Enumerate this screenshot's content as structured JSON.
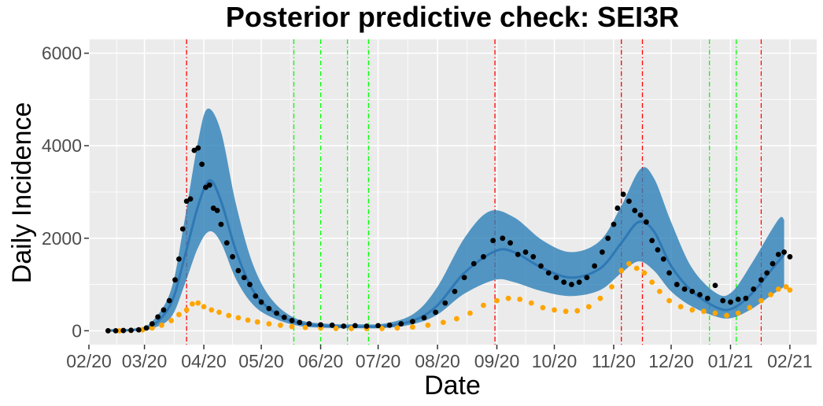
{
  "chart_data": {
    "type": "line",
    "title": "Posterior predictive check: SEI3R",
    "xlabel": "Date",
    "ylabel": "Daily Incidence",
    "x_range": [
      "2020-02-01",
      "2021-02-15"
    ],
    "ylim": [
      -300,
      6300
    ],
    "x_ticks": [
      {
        "date": "2020-02-01",
        "label": "02/20"
      },
      {
        "date": "2020-03-01",
        "label": "03/20"
      },
      {
        "date": "2020-04-01",
        "label": "04/20"
      },
      {
        "date": "2020-05-01",
        "label": "05/20"
      },
      {
        "date": "2020-06-01",
        "label": "06/20"
      },
      {
        "date": "2020-07-01",
        "label": "07/20"
      },
      {
        "date": "2020-08-01",
        "label": "08/20"
      },
      {
        "date": "2020-09-01",
        "label": "09/20"
      },
      {
        "date": "2020-10-01",
        "label": "10/20"
      },
      {
        "date": "2020-11-01",
        "label": "11/20"
      },
      {
        "date": "2020-12-01",
        "label": "12/20"
      },
      {
        "date": "2021-01-01",
        "label": "01/21"
      },
      {
        "date": "2021-02-01",
        "label": "02/21"
      }
    ],
    "y_ticks": [
      {
        "value": 0,
        "label": "0"
      },
      {
        "value": 2000,
        "label": "2000"
      },
      {
        "value": 4000,
        "label": "4000"
      },
      {
        "value": 6000,
        "label": "6000"
      }
    ],
    "grid": true,
    "background": "#ebebeb",
    "colors": {
      "band": "#2c7fb8",
      "median": "#2f78b5",
      "observed": "#000000",
      "secondary": "#ffa500",
      "red_lines": "#ff0000",
      "green_lines": "#00ff00"
    },
    "vertical_lines": {
      "red": [
        "2020-03-23",
        "2020-08-31",
        "2020-11-05",
        "2020-11-16",
        "2021-01-17"
      ],
      "green": [
        "2020-05-18",
        "2020-06-01",
        "2020-06-15",
        "2020-06-26",
        "2020-12-21",
        "2021-01-04"
      ]
    },
    "series": [
      {
        "role": "posterior-median",
        "points": [
          [
            "2020-02-10",
            5
          ],
          [
            "2020-02-25",
            20
          ],
          [
            "2020-03-05",
            100
          ],
          [
            "2020-03-15",
            600
          ],
          [
            "2020-03-22",
            1600
          ],
          [
            "2020-03-29",
            2700
          ],
          [
            "2020-04-04",
            3250
          ],
          [
            "2020-04-10",
            2800
          ],
          [
            "2020-04-18",
            1700
          ],
          [
            "2020-04-27",
            850
          ],
          [
            "2020-05-07",
            420
          ],
          [
            "2020-05-20",
            170
          ],
          [
            "2020-06-05",
            100
          ],
          [
            "2020-06-20",
            90
          ],
          [
            "2020-07-05",
            100
          ],
          [
            "2020-07-20",
            230
          ],
          [
            "2020-08-01",
            550
          ],
          [
            "2020-08-15",
            1250
          ],
          [
            "2020-08-31",
            1720
          ],
          [
            "2020-09-10",
            1700
          ],
          [
            "2020-09-25",
            1350
          ],
          [
            "2020-10-10",
            1150
          ],
          [
            "2020-10-25",
            1350
          ],
          [
            "2020-11-05",
            1900
          ],
          [
            "2020-11-14",
            2350
          ],
          [
            "2020-11-22",
            2150
          ],
          [
            "2020-12-01",
            1400
          ],
          [
            "2020-12-12",
            850
          ],
          [
            "2020-12-25",
            500
          ],
          [
            "2021-01-02",
            480
          ],
          [
            "2021-01-12",
            800
          ],
          [
            "2021-01-22",
            1300
          ],
          [
            "2021-01-29",
            1650
          ]
        ]
      },
      {
        "role": "credible-band-upper",
        "points": [
          [
            "2020-02-10",
            10
          ],
          [
            "2020-02-25",
            50
          ],
          [
            "2020-03-05",
            200
          ],
          [
            "2020-03-15",
            900
          ],
          [
            "2020-03-22",
            2400
          ],
          [
            "2020-03-29",
            4100
          ],
          [
            "2020-04-03",
            4800
          ],
          [
            "2020-04-10",
            4300
          ],
          [
            "2020-04-18",
            2700
          ],
          [
            "2020-04-27",
            1400
          ],
          [
            "2020-05-07",
            650
          ],
          [
            "2020-05-20",
            250
          ],
          [
            "2020-06-05",
            150
          ],
          [
            "2020-06-20",
            140
          ],
          [
            "2020-07-05",
            160
          ],
          [
            "2020-07-20",
            380
          ],
          [
            "2020-08-01",
            950
          ],
          [
            "2020-08-15",
            2000
          ],
          [
            "2020-08-28",
            2580
          ],
          [
            "2020-09-10",
            2450
          ],
          [
            "2020-09-25",
            1950
          ],
          [
            "2020-10-10",
            1700
          ],
          [
            "2020-10-25",
            1950
          ],
          [
            "2020-11-05",
            2700
          ],
          [
            "2020-11-15",
            3500
          ],
          [
            "2020-11-22",
            3300
          ],
          [
            "2020-12-01",
            2350
          ],
          [
            "2020-12-12",
            1350
          ],
          [
            "2020-12-25",
            800
          ],
          [
            "2021-01-02",
            850
          ],
          [
            "2021-01-12",
            1450
          ],
          [
            "2021-01-22",
            2150
          ],
          [
            "2021-01-27",
            2450
          ],
          [
            "2021-01-29",
            2400
          ]
        ]
      },
      {
        "role": "credible-band-lower",
        "points": [
          [
            "2020-02-10",
            0
          ],
          [
            "2020-02-25",
            5
          ],
          [
            "2020-03-05",
            50
          ],
          [
            "2020-03-15",
            300
          ],
          [
            "2020-03-22",
            1000
          ],
          [
            "2020-03-29",
            1800
          ],
          [
            "2020-04-04",
            2150
          ],
          [
            "2020-04-10",
            1900
          ],
          [
            "2020-04-18",
            1100
          ],
          [
            "2020-04-27",
            550
          ],
          [
            "2020-05-07",
            280
          ],
          [
            "2020-05-20",
            110
          ],
          [
            "2020-06-05",
            60
          ],
          [
            "2020-06-20",
            55
          ],
          [
            "2020-07-05",
            60
          ],
          [
            "2020-07-20",
            150
          ],
          [
            "2020-08-01",
            350
          ],
          [
            "2020-08-15",
            800
          ],
          [
            "2020-08-31",
            1100
          ],
          [
            "2020-09-10",
            1050
          ],
          [
            "2020-09-25",
            850
          ],
          [
            "2020-10-10",
            750
          ],
          [
            "2020-10-25",
            880
          ],
          [
            "2020-11-05",
            1250
          ],
          [
            "2020-11-14",
            1500
          ],
          [
            "2020-11-22",
            1300
          ],
          [
            "2020-12-01",
            850
          ],
          [
            "2020-12-12",
            520
          ],
          [
            "2020-12-25",
            300
          ],
          [
            "2021-01-02",
            280
          ],
          [
            "2021-01-12",
            470
          ],
          [
            "2021-01-22",
            760
          ],
          [
            "2021-01-29",
            950
          ]
        ]
      },
      {
        "role": "observed-black",
        "points": [
          [
            "2020-02-11",
            0
          ],
          [
            "2020-02-15",
            0
          ],
          [
            "2020-02-19",
            5
          ],
          [
            "2020-02-23",
            10
          ],
          [
            "2020-02-27",
            20
          ],
          [
            "2020-03-02",
            60
          ],
          [
            "2020-03-05",
            150
          ],
          [
            "2020-03-08",
            300
          ],
          [
            "2020-03-11",
            450
          ],
          [
            "2020-03-14",
            650
          ],
          [
            "2020-03-17",
            1100
          ],
          [
            "2020-03-19",
            1550
          ],
          [
            "2020-03-21",
            2200
          ],
          [
            "2020-03-23",
            2800
          ],
          [
            "2020-03-25",
            2850
          ],
          [
            "2020-03-27",
            3900
          ],
          [
            "2020-03-29",
            3950
          ],
          [
            "2020-03-31",
            3600
          ],
          [
            "2020-04-02",
            3100
          ],
          [
            "2020-04-04",
            3150
          ],
          [
            "2020-04-06",
            2650
          ],
          [
            "2020-04-08",
            2600
          ],
          [
            "2020-04-10",
            2300
          ],
          [
            "2020-04-13",
            1900
          ],
          [
            "2020-04-16",
            1600
          ],
          [
            "2020-04-19",
            1300
          ],
          [
            "2020-04-22",
            1150
          ],
          [
            "2020-04-25",
            1000
          ],
          [
            "2020-04-28",
            750
          ],
          [
            "2020-05-01",
            620
          ],
          [
            "2020-05-05",
            480
          ],
          [
            "2020-05-09",
            380
          ],
          [
            "2020-05-13",
            290
          ],
          [
            "2020-05-17",
            220
          ],
          [
            "2020-05-21",
            180
          ],
          [
            "2020-05-26",
            150
          ],
          [
            "2020-06-01",
            130
          ],
          [
            "2020-06-07",
            120
          ],
          [
            "2020-06-13",
            100
          ],
          [
            "2020-06-19",
            110
          ],
          [
            "2020-06-25",
            100
          ],
          [
            "2020-07-01",
            110
          ],
          [
            "2020-07-07",
            120
          ],
          [
            "2020-07-13",
            150
          ],
          [
            "2020-07-19",
            200
          ],
          [
            "2020-07-25",
            280
          ],
          [
            "2020-07-31",
            400
          ],
          [
            "2020-08-05",
            600
          ],
          [
            "2020-08-10",
            850
          ],
          [
            "2020-08-15",
            1150
          ],
          [
            "2020-08-20",
            1450
          ],
          [
            "2020-08-25",
            1600
          ],
          [
            "2020-08-30",
            1950
          ],
          [
            "2020-09-04",
            2000
          ],
          [
            "2020-09-08",
            1900
          ],
          [
            "2020-09-12",
            1650
          ],
          [
            "2020-09-16",
            1700
          ],
          [
            "2020-09-20",
            1600
          ],
          [
            "2020-09-24",
            1400
          ],
          [
            "2020-09-28",
            1250
          ],
          [
            "2020-10-02",
            1150
          ],
          [
            "2020-10-06",
            1050
          ],
          [
            "2020-10-10",
            1000
          ],
          [
            "2020-10-14",
            1050
          ],
          [
            "2020-10-18",
            1150
          ],
          [
            "2020-10-22",
            1400
          ],
          [
            "2020-10-26",
            1700
          ],
          [
            "2020-10-29",
            2000
          ],
          [
            "2020-11-01",
            2300
          ],
          [
            "2020-11-03",
            2650
          ],
          [
            "2020-11-06",
            2950
          ],
          [
            "2020-11-09",
            2800
          ],
          [
            "2020-11-12",
            2600
          ],
          [
            "2020-11-15",
            2500
          ],
          [
            "2020-11-18",
            2350
          ],
          [
            "2020-11-21",
            1950
          ],
          [
            "2020-11-24",
            1750
          ],
          [
            "2020-11-27",
            1550
          ],
          [
            "2020-11-30",
            1250
          ],
          [
            "2020-12-04",
            1000
          ],
          [
            "2020-12-08",
            900
          ],
          [
            "2020-12-12",
            850
          ],
          [
            "2020-12-16",
            780
          ],
          [
            "2020-12-20",
            700
          ],
          [
            "2020-12-24",
            980
          ],
          [
            "2020-12-28",
            650
          ],
          [
            "2021-01-01",
            620
          ],
          [
            "2021-01-05",
            680
          ],
          [
            "2021-01-09",
            700
          ],
          [
            "2021-01-13",
            900
          ],
          [
            "2021-01-17",
            1100
          ],
          [
            "2021-01-20",
            1250
          ],
          [
            "2021-01-23",
            1450
          ],
          [
            "2021-01-26",
            1650
          ],
          [
            "2021-01-29",
            1700
          ],
          [
            "2021-02-01",
            1600
          ]
        ]
      },
      {
        "role": "observed-orange",
        "points": [
          [
            "2020-02-11",
            0
          ],
          [
            "2020-02-17",
            0
          ],
          [
            "2020-02-23",
            5
          ],
          [
            "2020-02-29",
            20
          ],
          [
            "2020-03-05",
            60
          ],
          [
            "2020-03-10",
            120
          ],
          [
            "2020-03-15",
            220
          ],
          [
            "2020-03-19",
            350
          ],
          [
            "2020-03-23",
            450
          ],
          [
            "2020-03-26",
            580
          ],
          [
            "2020-03-29",
            600
          ],
          [
            "2020-04-01",
            520
          ],
          [
            "2020-04-05",
            450
          ],
          [
            "2020-04-09",
            400
          ],
          [
            "2020-04-14",
            330
          ],
          [
            "2020-04-19",
            280
          ],
          [
            "2020-04-24",
            230
          ],
          [
            "2020-04-29",
            190
          ],
          [
            "2020-05-05",
            150
          ],
          [
            "2020-05-11",
            120
          ],
          [
            "2020-05-17",
            90
          ],
          [
            "2020-05-24",
            70
          ],
          [
            "2020-06-01",
            60
          ],
          [
            "2020-06-09",
            50
          ],
          [
            "2020-06-17",
            50
          ],
          [
            "2020-06-25",
            50
          ],
          [
            "2020-07-03",
            50
          ],
          [
            "2020-07-11",
            60
          ],
          [
            "2020-07-19",
            80
          ],
          [
            "2020-07-27",
            120
          ],
          [
            "2020-08-04",
            180
          ],
          [
            "2020-08-11",
            260
          ],
          [
            "2020-08-18",
            380
          ],
          [
            "2020-08-25",
            550
          ],
          [
            "2020-09-01",
            650
          ],
          [
            "2020-09-07",
            700
          ],
          [
            "2020-09-13",
            680
          ],
          [
            "2020-09-19",
            600
          ],
          [
            "2020-09-25",
            500
          ],
          [
            "2020-10-01",
            450
          ],
          [
            "2020-10-07",
            420
          ],
          [
            "2020-10-13",
            430
          ],
          [
            "2020-10-19",
            520
          ],
          [
            "2020-10-25",
            700
          ],
          [
            "2020-10-31",
            950
          ],
          [
            "2020-11-05",
            1300
          ],
          [
            "2020-11-09",
            1450
          ],
          [
            "2020-11-13",
            1350
          ],
          [
            "2020-11-17",
            1250
          ],
          [
            "2020-11-21",
            1050
          ],
          [
            "2020-11-25",
            850
          ],
          [
            "2020-11-30",
            650
          ],
          [
            "2020-12-06",
            520
          ],
          [
            "2020-12-12",
            450
          ],
          [
            "2020-12-18",
            420
          ],
          [
            "2020-12-24",
            380
          ],
          [
            "2020-12-30",
            330
          ],
          [
            "2021-01-05",
            380
          ],
          [
            "2021-01-11",
            500
          ],
          [
            "2021-01-17",
            650
          ],
          [
            "2021-01-22",
            780
          ],
          [
            "2021-01-26",
            900
          ],
          [
            "2021-01-30",
            950
          ],
          [
            "2021-02-01",
            880
          ]
        ]
      }
    ]
  }
}
